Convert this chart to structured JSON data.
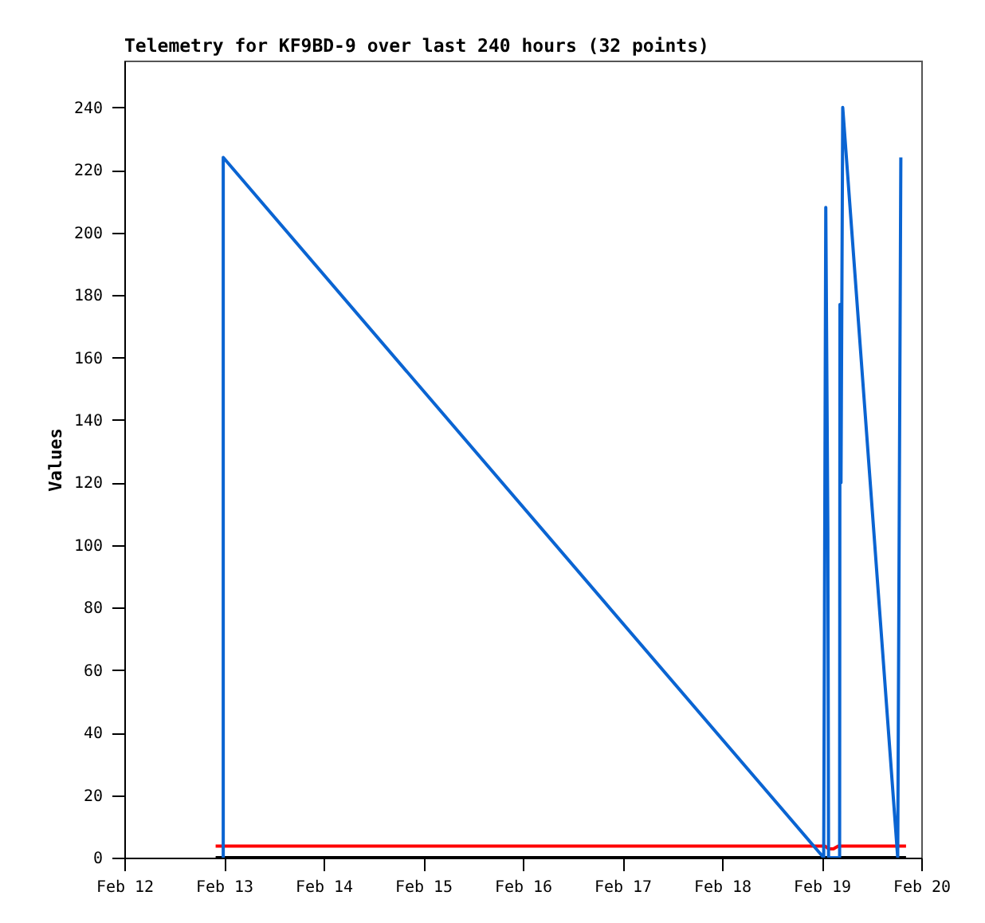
{
  "chart_data": {
    "type": "line",
    "title": "Telemetry for KF9BD-9 over last 240 hours (32 points)",
    "ylabel": "Values",
    "xlim": [
      "--02-12",
      "--02-20"
    ],
    "xticks": [
      {
        "value": "--02-12",
        "label": "Feb 12"
      },
      {
        "value": "--02-13",
        "label": "Feb 13"
      },
      {
        "value": "--02-14",
        "label": "Feb 14"
      },
      {
        "value": "--02-15",
        "label": "Feb 15"
      },
      {
        "value": "--02-16",
        "label": "Feb 16"
      },
      {
        "value": "--02-17",
        "label": "Feb 17"
      },
      {
        "value": "--02-18",
        "label": "Feb 18"
      },
      {
        "value": "--02-19",
        "label": "Feb 19"
      },
      {
        "value": "--02-20",
        "label": "Feb 20"
      }
    ],
    "ylim": [
      0,
      255
    ],
    "yticks": [
      0,
      20,
      40,
      60,
      80,
      100,
      120,
      140,
      160,
      180,
      200,
      220,
      240
    ],
    "grid": false,
    "series": [
      {
        "color": "#000000",
        "x": [
          "--02-12T22:00",
          "--02-19T20:20"
        ],
        "values": [
          0,
          0
        ]
      },
      {
        "color": "#ff0000",
        "x": [
          "--02-12T22:00",
          "--02-19T00:50",
          "--02-19T01:40",
          "--02-19T02:50",
          "--02-19T04:00",
          "--02-19T20:20"
        ],
        "values": [
          3.7,
          3.7,
          2.8,
          2.8,
          3.7,
          3.7
        ]
      },
      {
        "color": "#0a64d2",
        "x": [
          "--02-12T23:50",
          "--02-12T23:50",
          "--02-19T00:30",
          "--02-19T01:00",
          "--02-19T01:30",
          "--02-19T01:40",
          "--02-19T04:20",
          "--02-19T04:25",
          "--02-19T04:40",
          "--02-19T05:05",
          "--02-19T18:20",
          "--02-19T19:05"
        ],
        "values": [
          0,
          224,
          0,
          208,
          104,
          0,
          0,
          177,
          120,
          240,
          0,
          224
        ]
      }
    ]
  }
}
